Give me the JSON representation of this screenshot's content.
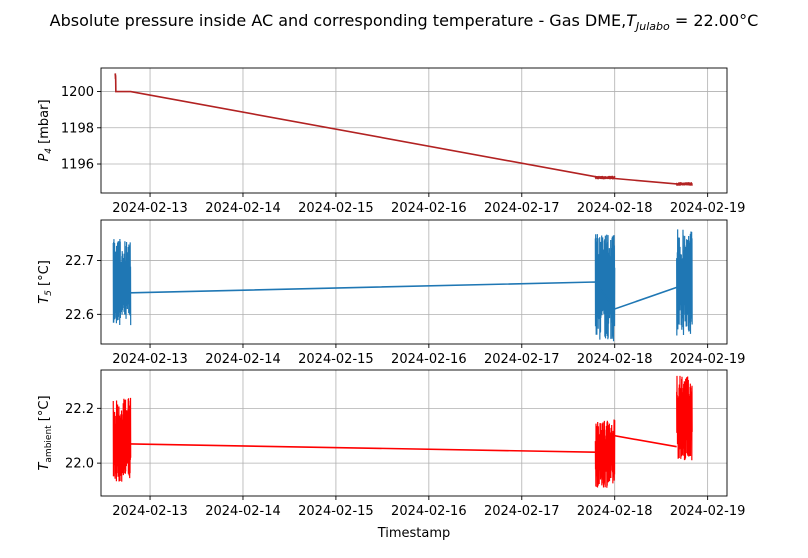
{
  "title": "Absolute pressure inside AC and corresponding temperature - Gas DME,",
  "title_sym": "T",
  "title_sub": "Julabo",
  "title_value": " = 22.00°C",
  "xlabel": "Timestamp",
  "chart_data": [
    {
      "type": "line",
      "ylabel_sym": "P",
      "ylabel_sub": "4",
      "ylabel_unit": " [mbar]",
      "color": "#b22222",
      "xlim": [
        "2024-02-12 11:20",
        "2024-02-19 05:00"
      ],
      "ylim": [
        1194.4,
        1201.3
      ],
      "yticks": [
        1196,
        1198,
        1200
      ],
      "xticks": [
        "2024-02-13",
        "2024-02-14",
        "2024-02-15",
        "2024-02-16",
        "2024-02-17",
        "2024-02-18",
        "2024-02-19"
      ],
      "grid": true,
      "series": [
        {
          "x": [
            "2024-02-12 15:00",
            "2024-02-12 15:02",
            "2024-02-12 15:04",
            "2024-02-12 15:06",
            "2024-02-12 15:08",
            "2024-02-12 15:10",
            "2024-02-12 15:12",
            "2024-02-12 19:00",
            "2024-02-17 19:00",
            "2024-02-17 21:00",
            "2024-02-18 00:00",
            "2024-02-18 16:00",
            "2024-02-18 20:00"
          ],
          "y": [
            1200.9,
            1201.0,
            1200.7,
            1200.9,
            1200.6,
            1200.0,
            1200.0,
            1200.0,
            1195.3,
            1195.25,
            1195.2,
            1194.9,
            1194.85
          ]
        }
      ],
      "bands": [
        {
          "x_start": "2024-02-17 19:00",
          "x_end": "2024-02-18 00:00",
          "y_min": 1195.15,
          "y_max": 1195.35
        },
        {
          "x_start": "2024-02-18 16:00",
          "x_end": "2024-02-18 20:00",
          "y_min": 1194.8,
          "y_max": 1195.0
        }
      ]
    },
    {
      "type": "line",
      "ylabel_sym": "T",
      "ylabel_sub": "5",
      "ylabel_unit": " [°C]",
      "color": "#1f77b4",
      "xlim": [
        "2024-02-12 11:20",
        "2024-02-19 05:00"
      ],
      "ylim": [
        22.545,
        22.775
      ],
      "yticks": [
        22.6,
        22.7
      ],
      "xticks": [
        "2024-02-13",
        "2024-02-14",
        "2024-02-15",
        "2024-02-16",
        "2024-02-17",
        "2024-02-18",
        "2024-02-19"
      ],
      "grid": true,
      "series": [
        {
          "x": [
            "2024-02-12 19:00",
            "2024-02-17 19:00",
            "2024-02-18 00:00",
            "2024-02-18 16:00"
          ],
          "y": [
            22.64,
            22.66,
            22.61,
            22.65
          ]
        }
      ],
      "bands": [
        {
          "x_start": "2024-02-12 14:30",
          "x_end": "2024-02-12 19:00",
          "y_min": 22.58,
          "y_max": 22.74
        },
        {
          "x_start": "2024-02-17 19:00",
          "x_end": "2024-02-18 00:00",
          "y_min": 22.55,
          "y_max": 22.75
        },
        {
          "x_start": "2024-02-18 16:00",
          "x_end": "2024-02-18 20:00",
          "y_min": 22.56,
          "y_max": 22.76
        }
      ]
    },
    {
      "type": "line",
      "ylabel_sym": "T",
      "ylabel_sub": "ambient",
      "ylabel_unit": " [°C]",
      "color": "#ff0000",
      "xlim": [
        "2024-02-12 11:20",
        "2024-02-19 05:00"
      ],
      "ylim": [
        21.88,
        22.34
      ],
      "yticks": [
        22.0,
        22.2
      ],
      "ytick_labels": [
        "22.0",
        "22.2"
      ],
      "xticks": [
        "2024-02-13",
        "2024-02-14",
        "2024-02-15",
        "2024-02-16",
        "2024-02-17",
        "2024-02-18",
        "2024-02-19"
      ],
      "grid": true,
      "series": [
        {
          "x": [
            "2024-02-12 19:00",
            "2024-02-17 19:00",
            "2024-02-18 00:00",
            "2024-02-18 16:00"
          ],
          "y": [
            22.07,
            22.04,
            22.1,
            22.06
          ]
        }
      ],
      "bands": [
        {
          "x_start": "2024-02-12 14:30",
          "x_end": "2024-02-12 19:00",
          "y_min": 21.93,
          "y_max": 22.24
        },
        {
          "x_start": "2024-02-17 19:00",
          "x_end": "2024-02-18 00:00",
          "y_min": 21.91,
          "y_max": 22.16
        },
        {
          "x_start": "2024-02-18 16:00",
          "x_end": "2024-02-18 20:00",
          "y_min": 22.01,
          "y_max": 22.32
        }
      ]
    }
  ]
}
